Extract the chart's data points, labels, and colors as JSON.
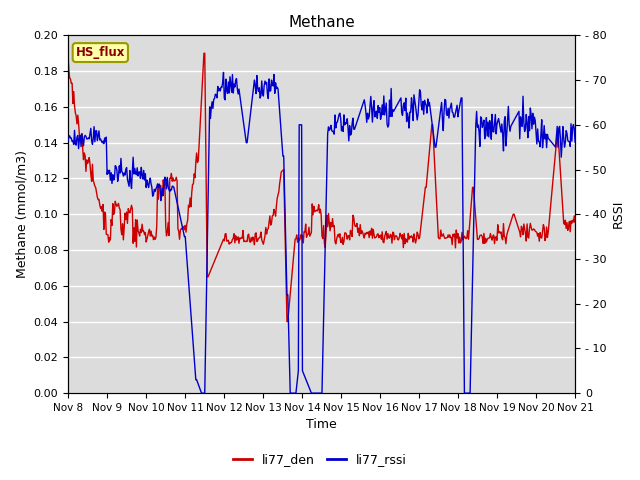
{
  "title": "Methane",
  "ylabel_left": "Methane (mmol/m3)",
  "ylabel_right": "RSSI",
  "xlabel": "Time",
  "ylim_left": [
    0.0,
    0.2
  ],
  "ylim_right": [
    0,
    80
  ],
  "yticks_left": [
    0.0,
    0.02,
    0.04,
    0.06,
    0.08,
    0.1,
    0.12,
    0.14,
    0.16,
    0.18,
    0.2
  ],
  "yticks_right": [
    0,
    10,
    20,
    30,
    40,
    50,
    60,
    70,
    80
  ],
  "xtick_labels": [
    "Nov 8",
    "Nov 9",
    "Nov 10",
    "Nov 11",
    "Nov 12",
    "Nov 13",
    "Nov 14",
    "Nov 15",
    "Nov 16",
    "Nov 17",
    "Nov 18",
    "Nov 19",
    "Nov 20",
    "Nov 21"
  ],
  "line1_color": "#cc0000",
  "line2_color": "#0000cc",
  "line1_label": "li77_den",
  "line2_label": "li77_rssi",
  "legend_label": "HS_flux",
  "plot_bg_color": "#dcdcdc",
  "grid_color": "#ffffff",
  "linewidth": 1.0,
  "figsize": [
    6.4,
    4.8
  ],
  "dpi": 100
}
